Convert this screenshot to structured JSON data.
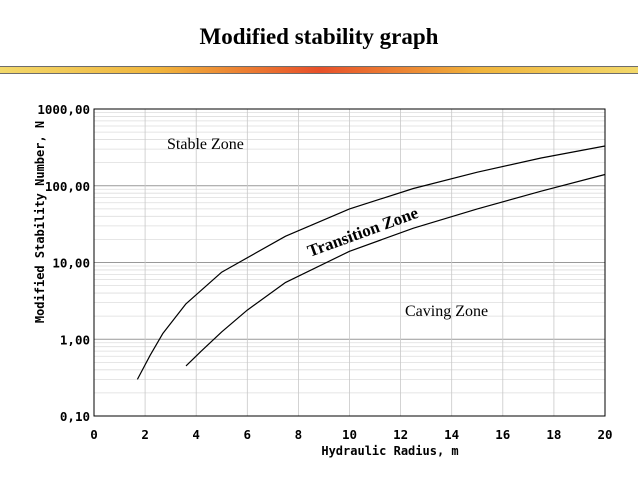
{
  "slide": {
    "title": "Modified stability graph"
  },
  "chart_data": {
    "type": "line",
    "title": "",
    "xlabel": "Hydraulic Radius, m",
    "ylabel": "Modified Stability Number, N",
    "xlim": [
      0,
      20
    ],
    "ylim": [
      0.1,
      1000
    ],
    "yscale": "log",
    "grid": true,
    "x_ticks": [
      "0",
      "2",
      "4",
      "6",
      "8",
      "10",
      "12",
      "14",
      "16",
      "18",
      "20"
    ],
    "y_ticks": [
      "0,10",
      "1,00",
      "10,00",
      "100,00",
      "1000,00"
    ],
    "annotations": {
      "stable": "Stable Zone",
      "transition": "Transition Zone",
      "caving": "Caving Zone"
    },
    "series": [
      {
        "x": [
          1.7,
          2.2,
          2.7,
          3.6,
          5.0,
          7.5,
          10.0,
          12.5,
          15.0,
          17.5,
          20.0
        ],
        "y": [
          0.3,
          0.62,
          1.2,
          2.9,
          7.5,
          22,
          50,
          92,
          150,
          230,
          330
        ]
      },
      {
        "x": [
          3.6,
          4.2,
          5.0,
          6.0,
          7.5,
          10.0,
          12.5,
          15.0,
          17.5,
          20.0
        ],
        "y": [
          0.45,
          0.7,
          1.25,
          2.4,
          5.5,
          14,
          28,
          50,
          85,
          140
        ]
      }
    ]
  }
}
